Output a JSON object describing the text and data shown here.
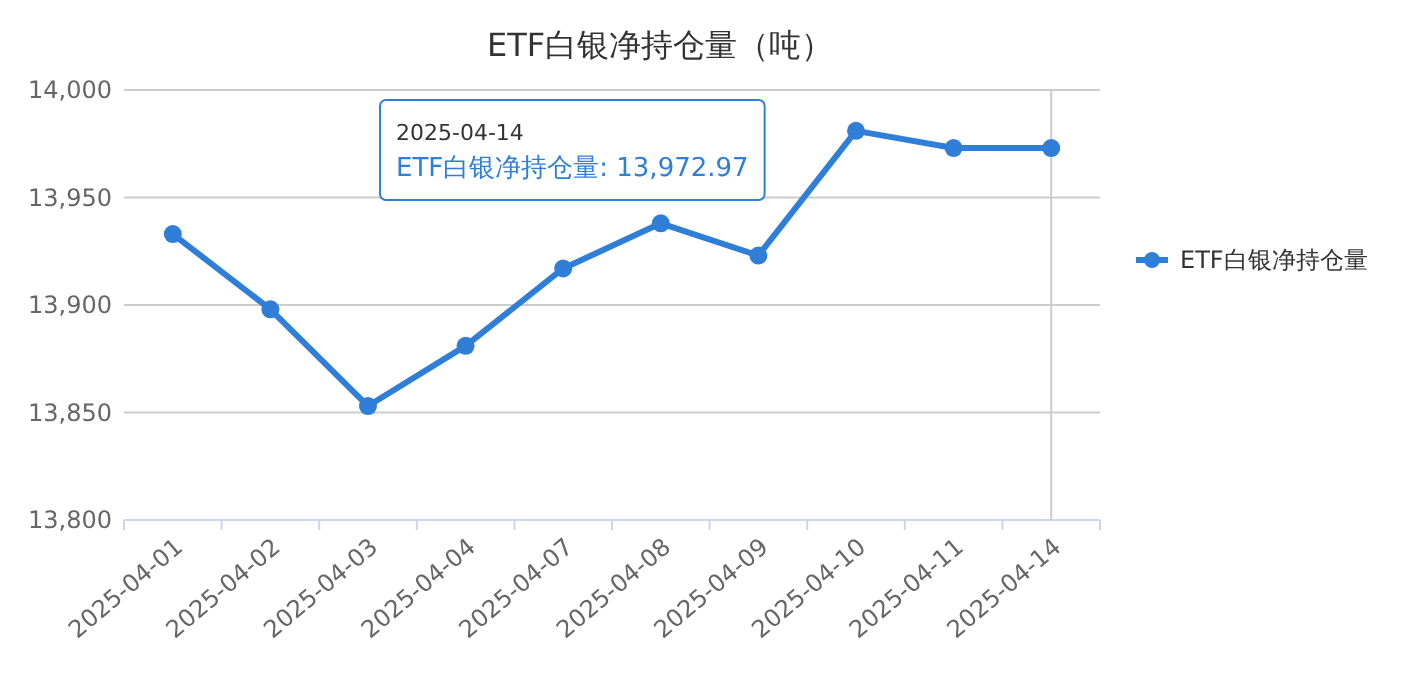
{
  "chart_data": {
    "type": "line",
    "title": "ETF白银净持仓量（吨）",
    "categories": [
      "2025-04-01",
      "2025-04-02",
      "2025-04-03",
      "2025-04-04",
      "2025-04-07",
      "2025-04-08",
      "2025-04-09",
      "2025-04-10",
      "2025-04-11",
      "2025-04-14"
    ],
    "series": [
      {
        "name": "ETF白银净持仓量",
        "color": "#2f7ed8",
        "values": [
          13933,
          13898,
          13853,
          13881,
          13917,
          13938,
          13923,
          13981,
          13973,
          13972.97
        ]
      }
    ],
    "ylim": [
      13800,
      14000
    ],
    "yticks": [
      {
        "value": 13800,
        "label": "13,800"
      },
      {
        "value": 13850,
        "label": "13,850"
      },
      {
        "value": 13900,
        "label": "13,900"
      },
      {
        "value": 13950,
        "label": "13,950"
      },
      {
        "value": 14000,
        "label": "14,000"
      }
    ],
    "grid": "y",
    "legend": "right",
    "marker": "circle",
    "line_style": "solid",
    "ref_lines": [
      {
        "axis": "x",
        "value": "2025-04-14",
        "color": "#cccccc"
      }
    ],
    "annotations": [
      "2025-04-14\nETF白银净持仓量: 13,972.97"
    ]
  }
}
